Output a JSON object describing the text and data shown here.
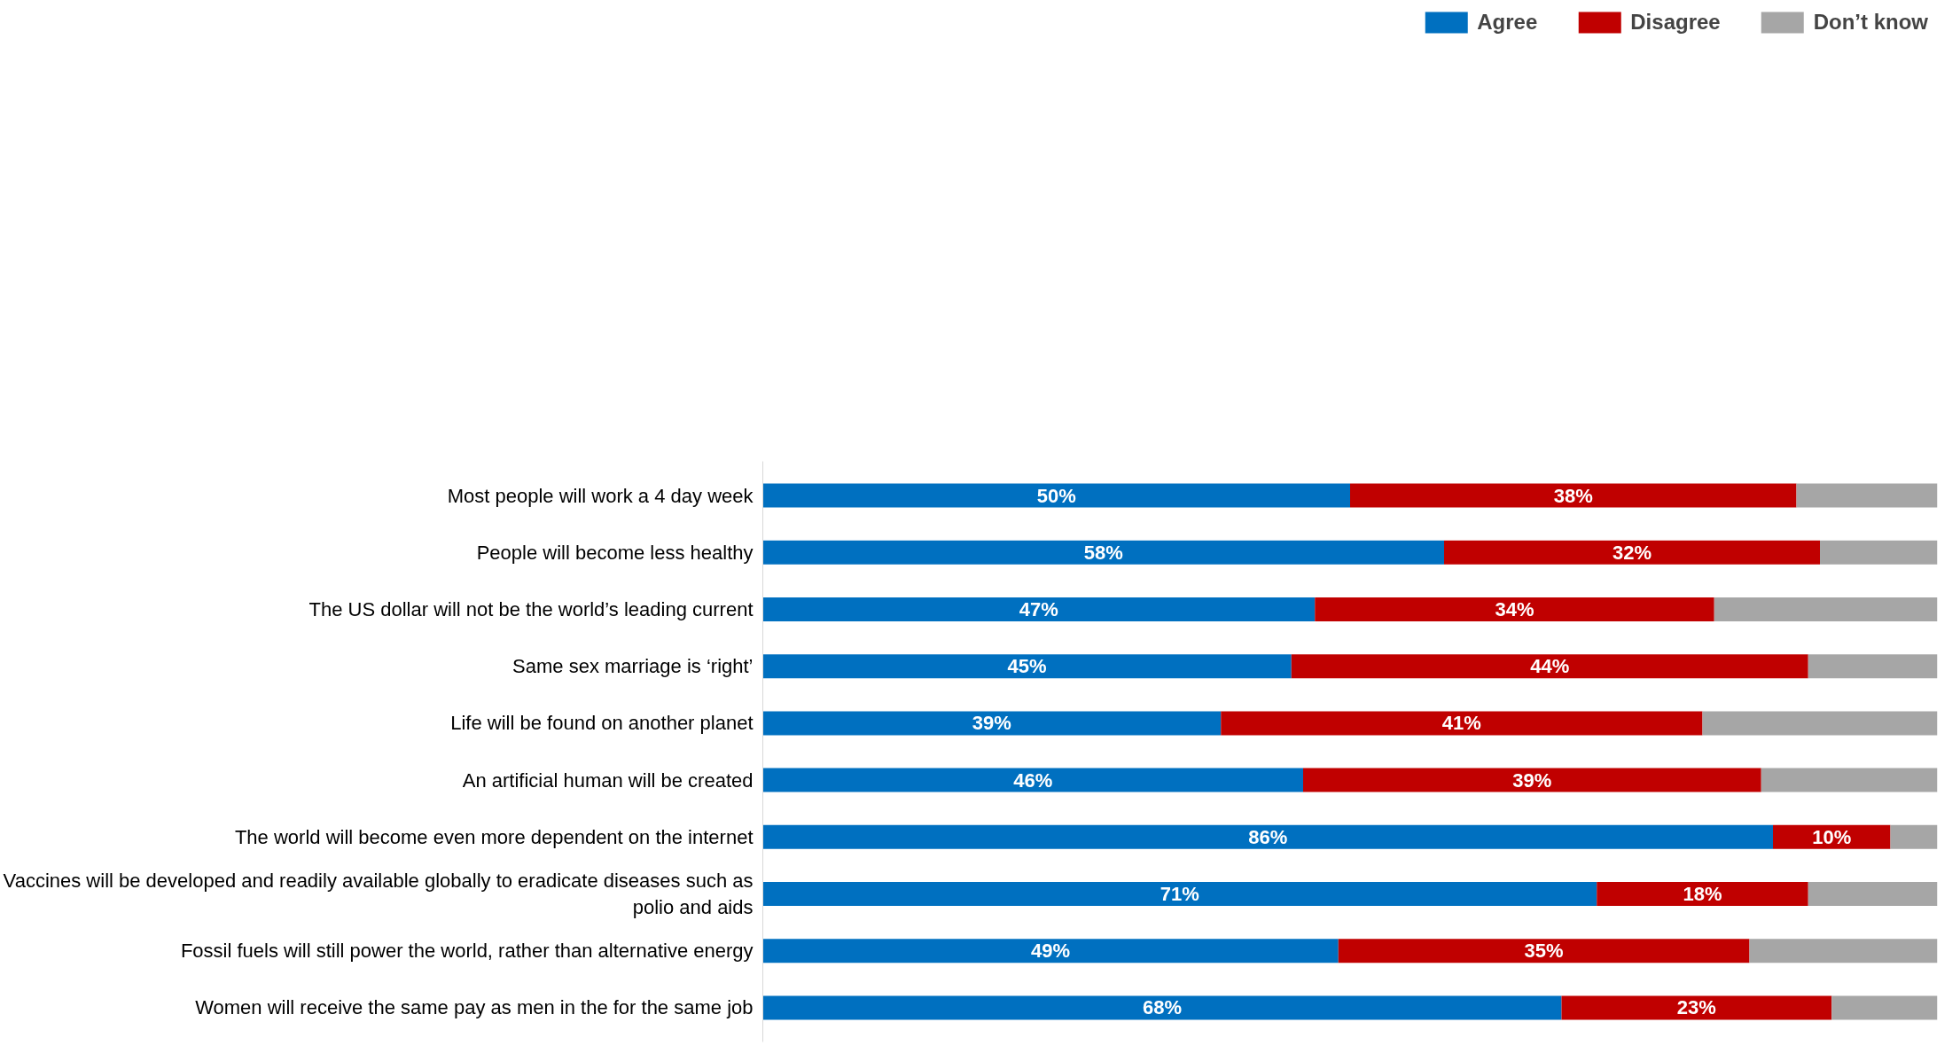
{
  "chart_data": {
    "type": "bar",
    "orientation": "horizontal",
    "stacked": true,
    "xlim": [
      0,
      100
    ],
    "legend": "top",
    "grid": false,
    "tick_labels": "y",
    "categories": [
      "Most people will work a 4 day week",
      "People will become less healthy",
      "The US dollar will not be the world’s leading current",
      "Same sex marriage is ‘right’",
      "Life will be found on another planet",
      "An artificial human will be created",
      "The world will become even more dependent on the internet",
      "Vaccines will be developed and readily available globally to eradicate diseases such as polio and aids",
      "Fossil fuels will still power the world, rather than alternative energy",
      "Women will receive the same pay as men in the for the same job"
    ],
    "series": [
      {
        "name": "Agree",
        "color": "#0070c0",
        "values": [
          50,
          58,
          47,
          45,
          39,
          46,
          86,
          71,
          49,
          68
        ],
        "value_labels": [
          "50%",
          "58%",
          "47%",
          "45%",
          "39%",
          "46%",
          "86%",
          "71%",
          "49%",
          "68%"
        ]
      },
      {
        "name": "Disagree",
        "color": "#c00000",
        "values": [
          38,
          32,
          34,
          44,
          41,
          39,
          10,
          18,
          35,
          23
        ],
        "value_labels": [
          "38%",
          "32%",
          "34%",
          "44%",
          "41%",
          "39%",
          "10%",
          "18%",
          "35%",
          "23%"
        ]
      },
      {
        "name": "Don’t know",
        "color": "#a6a6a6",
        "values": [
          12,
          10,
          19,
          11,
          20,
          15,
          4,
          11,
          16,
          9
        ],
        "value_labels": [
          null,
          null,
          null,
          null,
          null,
          null,
          null,
          null,
          null,
          null
        ]
      }
    ]
  }
}
